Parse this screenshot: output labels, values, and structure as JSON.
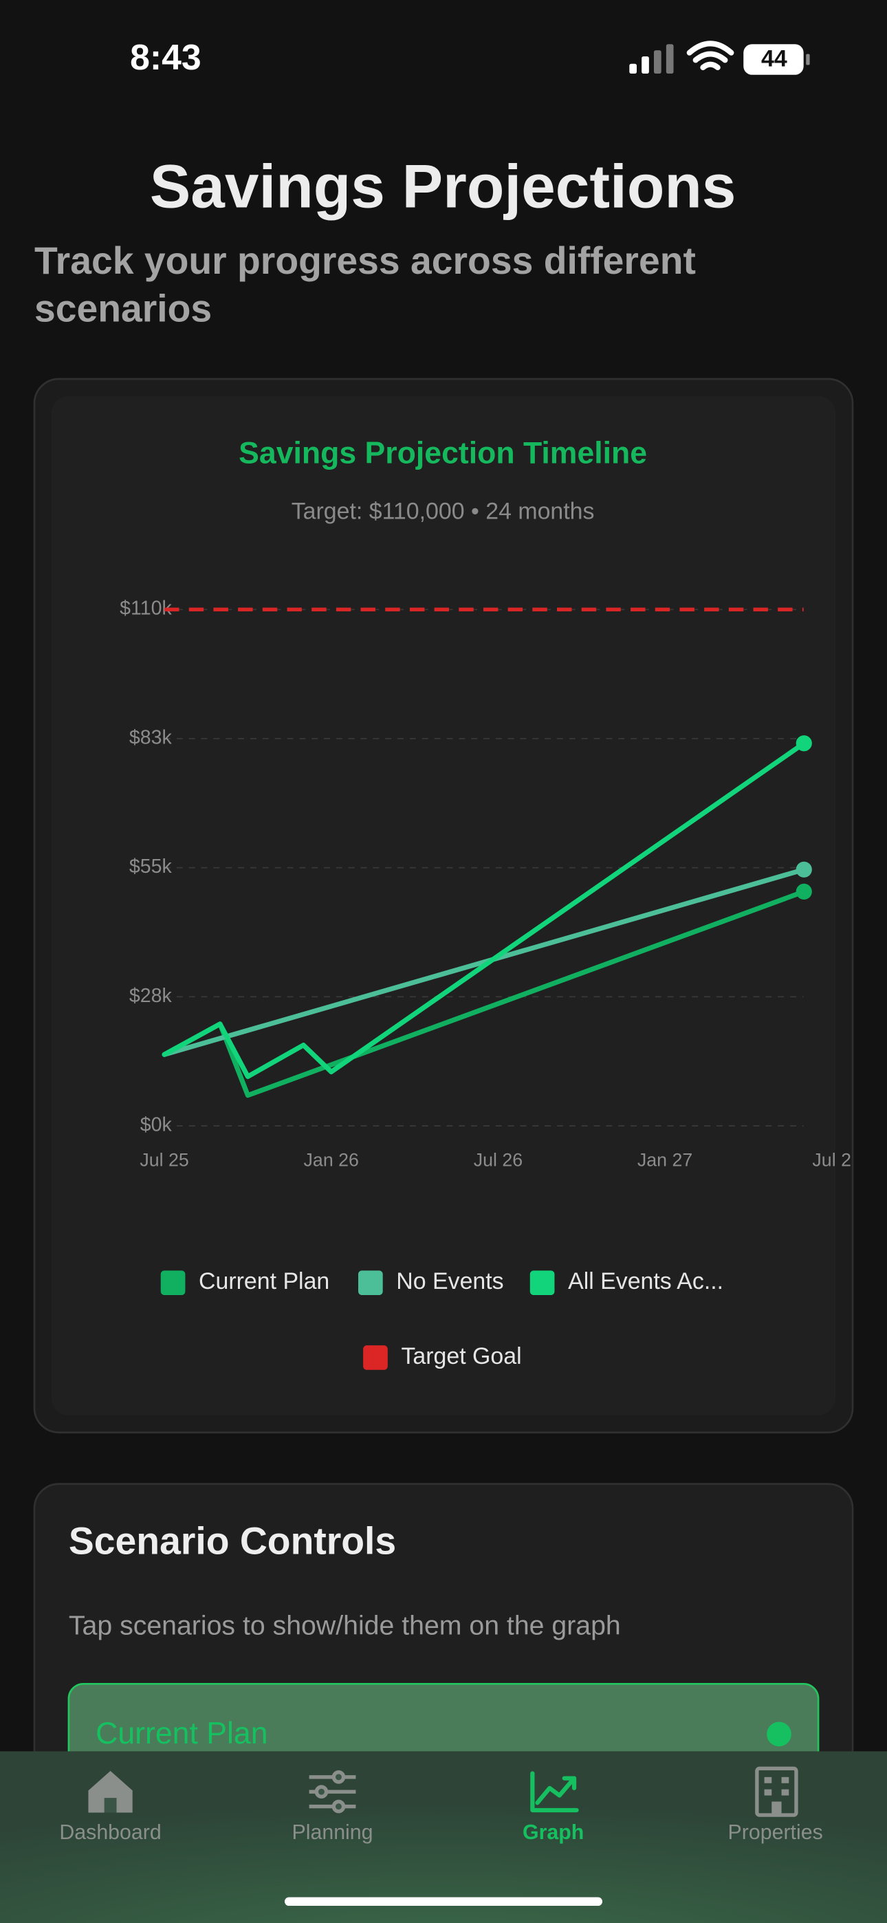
{
  "status_bar": {
    "time": "8:43",
    "battery": "44"
  },
  "header": {
    "title": "Savings Projections",
    "subtitle_lines": [
      "Track your progress across different",
      "scenarios"
    ]
  },
  "chart_data": {
    "type": "line",
    "title": "Savings Projection Timeline",
    "subtitle": "Target: $110,000 • 24 months",
    "xlim": [
      0,
      24
    ],
    "xticks": [
      {
        "value": 0,
        "label": "Jul 25"
      },
      {
        "value": 6,
        "label": "Jan 26"
      },
      {
        "value": 12,
        "label": "Jul 26"
      },
      {
        "value": 18,
        "label": "Jan 27"
      },
      {
        "value": 24,
        "label": "Jul 2"
      }
    ],
    "ylim": [
      0,
      110
    ],
    "yticks": [
      {
        "value": 0,
        "label": "$0k"
      },
      {
        "value": 27.5,
        "label": "$28k"
      },
      {
        "value": 55,
        "label": "$55k"
      },
      {
        "value": 82.5,
        "label": "$83k"
      },
      {
        "value": 110,
        "label": "$110k"
      }
    ],
    "grid": true,
    "series": [
      {
        "name": "Current Plan",
        "color": "#10b060",
        "x": [
          0,
          2,
          3,
          23
        ],
        "values": [
          15.2,
          21.7,
          6.5,
          49.9
        ]
      },
      {
        "name": "No Events",
        "color": "#4cbf98",
        "x": [
          0,
          23
        ],
        "values": [
          15.2,
          54.6
        ]
      },
      {
        "name": "All Events Ac...",
        "color": "#12d47a",
        "x": [
          0,
          2,
          3,
          5,
          6,
          23
        ],
        "values": [
          15.2,
          21.7,
          10.5,
          17.2,
          11.5,
          81.5
        ]
      }
    ],
    "target": {
      "name": "Target Goal",
      "color": "#dc2626",
      "value": 110
    }
  },
  "scenario_controls": {
    "title": "Scenario Controls",
    "hint": "Tap scenarios to show/hide them on the graph",
    "items": [
      "Current Plan"
    ]
  },
  "tab_bar": {
    "tabs": [
      "Dashboard",
      "Planning",
      "Graph",
      "Properties"
    ],
    "active": 2
  }
}
